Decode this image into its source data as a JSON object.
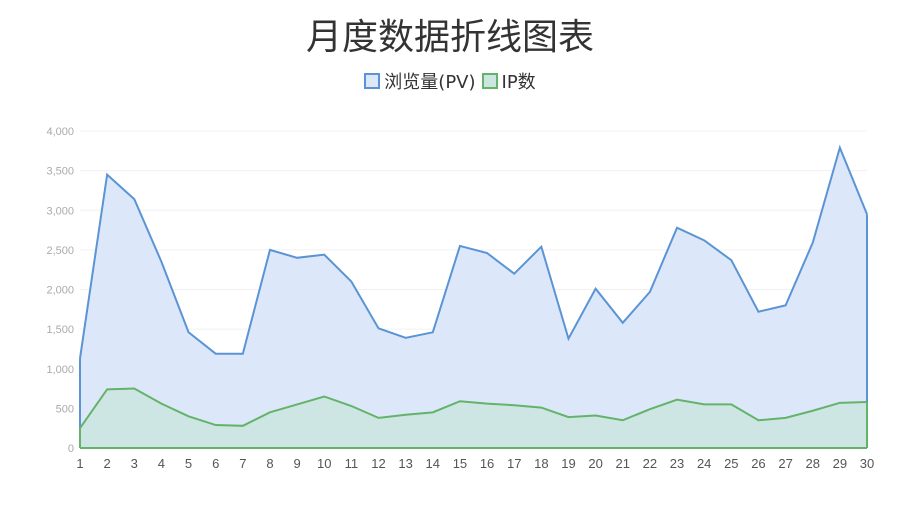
{
  "chart_data": {
    "type": "area",
    "title": "月度数据折线图表",
    "x": [
      1,
      2,
      3,
      4,
      5,
      6,
      7,
      8,
      9,
      10,
      11,
      12,
      13,
      14,
      15,
      16,
      17,
      18,
      19,
      20,
      21,
      22,
      23,
      24,
      25,
      26,
      27,
      28,
      29,
      30
    ],
    "ylim": [
      0,
      4000
    ],
    "yticks": [
      0,
      500,
      1000,
      1500,
      2000,
      2500,
      3000,
      3500,
      4000
    ],
    "ytick_labels": [
      "0",
      "500",
      "1,000",
      "1,500",
      "2,000",
      "2,500",
      "3,000",
      "3,500",
      "4,000"
    ],
    "grid": true,
    "legend_position": "top-center",
    "series": [
      {
        "name": "浏览量(PV)",
        "color": "#5b94d4",
        "fill": "#dce8f9",
        "values": [
          1130,
          3450,
          3140,
          2350,
          1460,
          1190,
          1190,
          2500,
          2400,
          2440,
          2100,
          1510,
          1390,
          1460,
          2550,
          2460,
          2200,
          2540,
          1380,
          2010,
          1580,
          1970,
          2780,
          2620,
          2370,
          1720,
          1800,
          2590,
          3790,
          2950
        ]
      },
      {
        "name": "IP数",
        "color": "#63b36a",
        "fill": "#cbe5df",
        "values": [
          250,
          740,
          750,
          560,
          400,
          290,
          280,
          450,
          550,
          650,
          530,
          380,
          420,
          450,
          590,
          560,
          540,
          510,
          390,
          410,
          350,
          490,
          610,
          550,
          550,
          350,
          380,
          470,
          570,
          580
        ]
      }
    ]
  }
}
